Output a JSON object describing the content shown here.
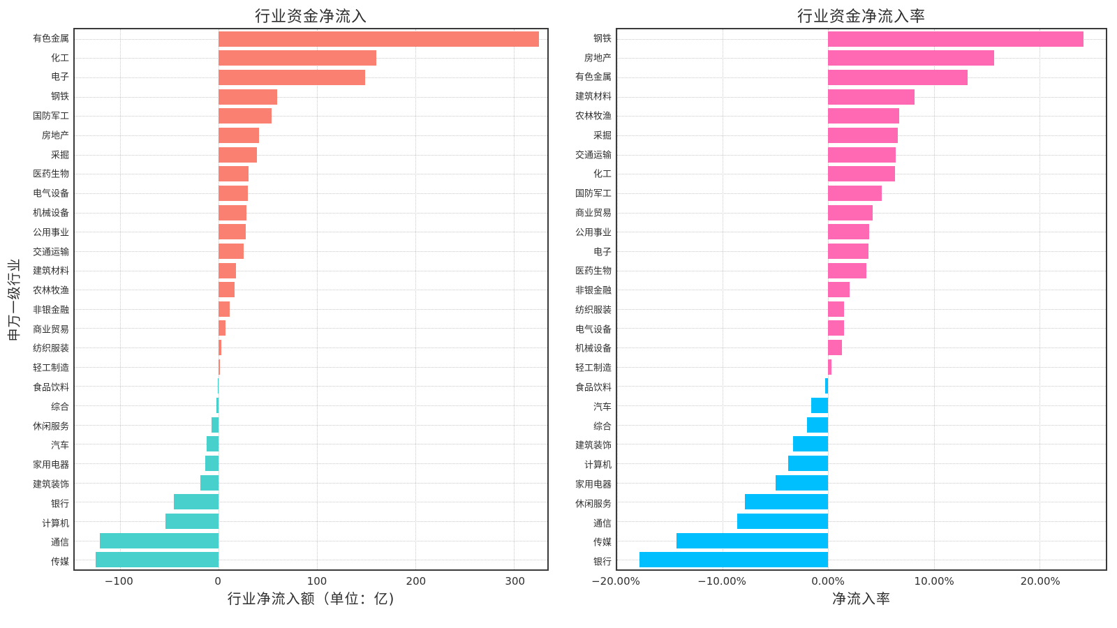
{
  "style": {
    "background": "#ffffff",
    "text_color": "#2e2e2e",
    "border_color": "#3a3a3a",
    "grid_color": "#c9c9c9"
  },
  "chart_data": [
    {
      "type": "bar",
      "orientation": "horizontal",
      "title": "行业资金净流入",
      "xlabel": "行业净流入额（单位：亿)",
      "ylabel": "申万一级行业",
      "legend_position": "none",
      "grid": "dotted",
      "xlim": [
        -146,
        334
      ],
      "xticks": [
        {
          "v": -100,
          "label": "−100"
        },
        {
          "v": 0,
          "label": "0"
        },
        {
          "v": 100,
          "label": "100"
        },
        {
          "v": 200,
          "label": "200"
        },
        {
          "v": 300,
          "label": "300"
        }
      ],
      "positive_color": "#FA8072",
      "negative_color": "#48D1CC",
      "categories": [
        "有色金属",
        "化工",
        "电子",
        "钢铁",
        "国防军工",
        "房地产",
        "采掘",
        "医药生物",
        "电气设备",
        "机械设备",
        "公用事业",
        "交通运输",
        "建筑材料",
        "农林牧渔",
        "非银金融",
        "商业贸易",
        "纺织服装",
        "轻工制造",
        "食品饮料",
        "综合",
        "休闲服务",
        "汽车",
        "家用电器",
        "建筑装饰",
        "银行",
        "计算机",
        "通信",
        "传媒"
      ],
      "values": [
        325.6,
        160.5,
        149.3,
        59.9,
        53.7,
        41.5,
        38.9,
        30.3,
        29.6,
        28.2,
        27.5,
        25.4,
        17.8,
        16.4,
        11.5,
        7.3,
        2.8,
        1.2,
        -0.6,
        -2.0,
        -7.3,
        -12.0,
        -13.2,
        -18.5,
        -45.3,
        -53.5,
        -120.4,
        -124.6
      ]
    },
    {
      "type": "bar",
      "orientation": "horizontal",
      "title": "行业资金净流入率",
      "xlabel": "净流入率",
      "ylabel": "",
      "legend_position": "none",
      "grid": "dotted",
      "xlim": [
        -20,
        26.3
      ],
      "xticks": [
        {
          "v": -20,
          "label": "−20.00%"
        },
        {
          "v": -10,
          "label": "−10.00%"
        },
        {
          "v": 0,
          "label": "0.00%"
        },
        {
          "v": 10,
          "label": "10.00%"
        },
        {
          "v": 20,
          "label": "20.00%"
        }
      ],
      "positive_color": "#FF69B4",
      "negative_color": "#00BFFF",
      "categories": [
        "钢铁",
        "房地产",
        "有色金属",
        "建筑材料",
        "农林牧渔",
        "采掘",
        "交通运输",
        "化工",
        "国防军工",
        "商业贸易",
        "公用事业",
        "电子",
        "医药生物",
        "非银金融",
        "纺织服装",
        "电气设备",
        "机械设备",
        "轻工制造",
        "食品饮料",
        "汽车",
        "综合",
        "建筑装饰",
        "计算机",
        "家用电器",
        "休闲服务",
        "通信",
        "传媒",
        "银行"
      ],
      "values": [
        24.2,
        15.7,
        13.2,
        8.2,
        6.7,
        6.6,
        6.4,
        6.3,
        5.1,
        4.2,
        3.9,
        3.8,
        3.6,
        2.0,
        1.5,
        1.5,
        1.3,
        0.3,
        -0.3,
        -1.6,
        -2.0,
        -3.3,
        -3.8,
        -5.0,
        -7.9,
        -8.6,
        -14.4,
        -17.9
      ]
    }
  ]
}
